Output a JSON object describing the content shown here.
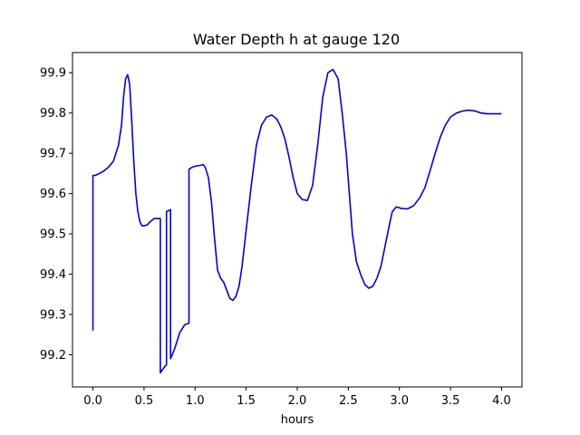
{
  "chart_data": {
    "type": "line",
    "title": "Water Depth h at gauge 120",
    "xlabel": "hours",
    "ylabel": "",
    "xlim": [
      -0.2,
      4.2
    ],
    "ylim": [
      99.12,
      99.95
    ],
    "xticks": [
      0.0,
      0.5,
      1.0,
      1.5,
      2.0,
      2.5,
      3.0,
      3.5,
      4.0
    ],
    "xtick_labels": [
      "0.0",
      "0.5",
      "1.0",
      "1.5",
      "2.0",
      "2.5",
      "3.0",
      "3.5",
      "4.0"
    ],
    "yticks": [
      99.2,
      99.3,
      99.4,
      99.5,
      99.6,
      99.7,
      99.8,
      99.9
    ],
    "ytick_labels": [
      "99.2",
      "99.3",
      "99.4",
      "99.5",
      "99.6",
      "99.7",
      "99.8",
      "99.9"
    ],
    "grid": false,
    "legend": "none",
    "series": [
      {
        "color": "#0000dd",
        "x": [
          0.0,
          0.0,
          0.02,
          0.05,
          0.1,
          0.15,
          0.2,
          0.25,
          0.28,
          0.3,
          0.32,
          0.34,
          0.36,
          0.38,
          0.4,
          0.42,
          0.44,
          0.46,
          0.48,
          0.5,
          0.53,
          0.56,
          0.6,
          0.63,
          0.66,
          0.66,
          0.7,
          0.72,
          0.72,
          0.76,
          0.76,
          0.8,
          0.85,
          0.9,
          0.94,
          0.94,
          0.97,
          1.0,
          1.05,
          1.08,
          1.1,
          1.13,
          1.16,
          1.19,
          1.22,
          1.25,
          1.28,
          1.31,
          1.34,
          1.37,
          1.4,
          1.43,
          1.46,
          1.5,
          1.55,
          1.6,
          1.65,
          1.7,
          1.75,
          1.8,
          1.84,
          1.88,
          1.92,
          1.96,
          2.0,
          2.05,
          2.1,
          2.15,
          2.2,
          2.25,
          2.3,
          2.35,
          2.4,
          2.44,
          2.48,
          2.51,
          2.54,
          2.58,
          2.62,
          2.66,
          2.7,
          2.74,
          2.78,
          2.82,
          2.86,
          2.9,
          2.93,
          2.97,
          3.02,
          3.08,
          3.14,
          3.2,
          3.25,
          3.28,
          3.31,
          3.35,
          3.4,
          3.45,
          3.5,
          3.56,
          3.62,
          3.68,
          3.74,
          3.8,
          3.86,
          3.9,
          3.94,
          3.97,
          4.0
        ],
        "y": [
          99.26,
          99.645,
          99.645,
          99.648,
          99.655,
          99.665,
          99.68,
          99.72,
          99.77,
          99.84,
          99.885,
          99.895,
          99.87,
          99.78,
          99.68,
          99.6,
          99.555,
          99.53,
          99.52,
          99.52,
          99.522,
          99.53,
          99.538,
          99.538,
          99.538,
          99.155,
          99.17,
          99.175,
          99.555,
          99.56,
          99.19,
          99.215,
          99.255,
          99.275,
          99.278,
          99.66,
          99.665,
          99.668,
          99.67,
          99.672,
          99.665,
          99.64,
          99.58,
          99.49,
          99.41,
          99.39,
          99.38,
          99.36,
          99.34,
          99.335,
          99.345,
          99.37,
          99.42,
          99.51,
          99.62,
          99.72,
          99.77,
          99.79,
          99.795,
          99.785,
          99.765,
          99.735,
          99.69,
          99.64,
          99.6,
          99.585,
          99.583,
          99.62,
          99.72,
          99.84,
          99.9,
          99.908,
          99.885,
          99.8,
          99.7,
          99.6,
          99.5,
          99.43,
          99.4,
          99.375,
          99.365,
          99.37,
          99.39,
          99.42,
          99.47,
          99.52,
          99.555,
          99.567,
          99.563,
          99.562,
          99.57,
          99.59,
          99.615,
          99.64,
          99.665,
          99.7,
          99.74,
          99.77,
          99.79,
          99.8,
          99.805,
          99.807,
          99.805,
          99.8,
          99.798,
          99.798,
          99.798,
          99.798,
          99.798
        ]
      }
    ]
  }
}
